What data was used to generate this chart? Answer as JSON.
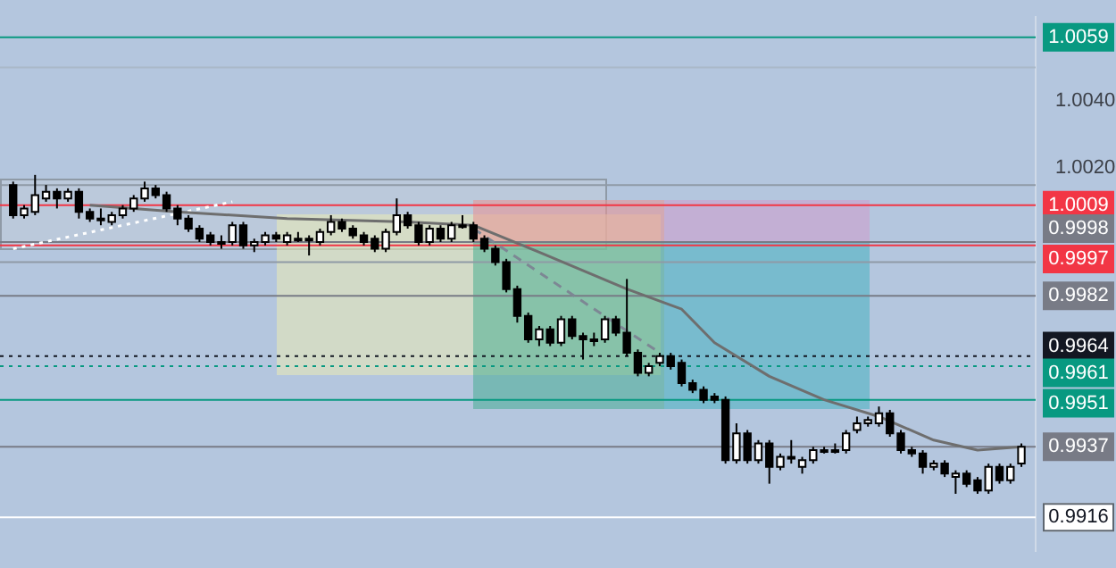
{
  "chart_data": {
    "type": "candlestick",
    "categories": [
      null,
      null,
      null,
      null,
      null,
      null,
      null,
      null,
      null,
      null,
      null,
      null,
      null,
      null,
      null,
      null,
      null,
      null,
      null,
      null,
      null,
      null,
      null,
      null,
      null,
      null,
      null,
      null,
      null,
      null,
      null,
      null,
      null,
      null,
      null,
      null,
      null,
      null,
      null,
      null,
      null,
      null,
      null,
      null,
      null,
      null,
      null,
      null,
      null,
      null,
      null,
      null,
      null,
      null,
      null,
      null,
      null,
      null,
      null,
      null,
      null,
      null,
      null,
      null,
      null,
      null,
      null,
      null,
      null,
      null,
      null,
      null,
      null,
      null,
      null,
      null,
      null,
      null,
      null,
      null,
      null,
      null,
      null,
      null,
      null,
      null,
      null,
      null,
      null,
      null,
      null,
      null,
      null
    ],
    "ohlc": [
      [
        1.0015,
        1.0016,
        1.0005,
        1.0006
      ],
      [
        1.0006,
        1.0009,
        1.0005,
        1.0008
      ],
      [
        1.0007,
        1.0018,
        1.0006,
        1.0012
      ],
      [
        1.0011,
        1.0015,
        1.001,
        1.0013
      ],
      [
        1.0013,
        1.0014,
        1.0008,
        1.0011
      ],
      [
        1.0011,
        1.0014,
        1.001,
        1.0013
      ],
      [
        1.0013,
        1.0014,
        1.0005,
        1.0007
      ],
      [
        1.0007,
        1.0008,
        1.0004,
        1.0005
      ],
      [
        1.0005,
        1.0008,
        1.0003,
        1.0005
      ],
      [
        1.0004,
        1.0007,
        1.0003,
        1.0006
      ],
      [
        1.0006,
        1.0009,
        1.0005,
        1.0008
      ],
      [
        1.0008,
        1.0012,
        1.0007,
        1.0011
      ],
      [
        1.0011,
        1.0016,
        1.001,
        1.0014
      ],
      [
        1.0014,
        1.0015,
        1.0011,
        1.0012
      ],
      [
        1.0012,
        1.0013,
        1.0007,
        1.0008
      ],
      [
        1.0008,
        1.0009,
        1.0003,
        1.0005
      ],
      [
        1.0005,
        1.0006,
        1.0001,
        1.0002
      ],
      [
        1.0002,
        1.0003,
        0.9998,
        0.9999
      ],
      [
        1.0,
        1.0001,
        0.9997,
        0.9998
      ],
      [
        0.9998,
        1.0,
        0.9996,
        0.9998
      ],
      [
        0.9998,
        1.0004,
        0.9997,
        1.0003
      ],
      [
        1.0003,
        1.0004,
        0.9996,
        0.9997
      ],
      [
        0.9997,
        0.9999,
        0.9995,
        0.9998
      ],
      [
        0.9998,
        1.0001,
        0.9997,
        1.0
      ],
      [
        1.0,
        1.0001,
        0.9998,
        0.9999
      ],
      [
        0.9998,
        1.0001,
        0.9997,
        1.0
      ],
      [
        0.9999,
        1.0001,
        0.9998,
        0.9999
      ],
      [
        0.9999,
        1.0,
        0.9994,
        0.9999
      ],
      [
        0.9998,
        1.0002,
        0.9997,
        1.0001
      ],
      [
        1.0001,
        1.0006,
        1.0,
        1.0004
      ],
      [
        1.0004,
        1.0005,
        1.0001,
        1.0002
      ],
      [
        1.0002,
        1.0003,
        0.9999,
        1.0
      ],
      [
        1.0,
        1.0001,
        0.9997,
        0.9998
      ],
      [
        0.9999,
        1.0,
        0.9995,
        0.9996
      ],
      [
        0.9996,
        1.0002,
        0.9995,
        1.0001
      ],
      [
        1.0001,
        1.0011,
        1.0,
        1.0006
      ],
      [
        1.0006,
        1.0007,
        1.0002,
        1.0003
      ],
      [
        1.0003,
        1.0004,
        0.9997,
        0.9998
      ],
      [
        0.9998,
        1.0003,
        0.9997,
        1.0002
      ],
      [
        1.0002,
        1.0003,
        0.9998,
        0.9999
      ],
      [
        0.9999,
        1.0004,
        0.9998,
        1.0003
      ],
      [
        1.0003,
        1.0006,
        1.0002,
        1.0003
      ],
      [
        1.0003,
        1.0004,
        0.9998,
        0.9999
      ],
      [
        0.9999,
        1.0,
        0.9995,
        0.9996
      ],
      [
        0.9996,
        0.9997,
        0.9991,
        0.9992
      ],
      [
        0.9992,
        0.9993,
        0.9983,
        0.9984
      ],
      [
        0.9984,
        0.9985,
        0.9974,
        0.9976
      ],
      [
        0.9976,
        0.9977,
        0.9968,
        0.9969
      ],
      [
        0.9969,
        0.9973,
        0.9967,
        0.9972
      ],
      [
        0.9972,
        0.9973,
        0.9967,
        0.9968
      ],
      [
        0.9968,
        0.9976,
        0.9967,
        0.9975
      ],
      [
        0.9975,
        0.9976,
        0.9969,
        0.997
      ],
      [
        0.997,
        0.9971,
        0.9963,
        0.9969
      ],
      [
        0.9969,
        0.9971,
        0.9967,
        0.9969
      ],
      [
        0.9969,
        0.9976,
        0.9968,
        0.9975
      ],
      [
        0.9975,
        0.9976,
        0.997,
        0.9971
      ],
      [
        0.9971,
        0.9987,
        0.9964,
        0.9965
      ],
      [
        0.9965,
        0.9966,
        0.9958,
        0.9959
      ],
      [
        0.9959,
        0.9962,
        0.9958,
        0.9961
      ],
      [
        0.9962,
        0.9965,
        0.9961,
        0.9964
      ],
      [
        0.9964,
        0.9965,
        0.996,
        0.9961
      ],
      [
        0.9962,
        0.9963,
        0.9955,
        0.9956
      ],
      [
        0.9956,
        0.9957,
        0.9953,
        0.9954
      ],
      [
        0.9954,
        0.9955,
        0.995,
        0.9951
      ],
      [
        0.9952,
        0.9953,
        0.995,
        0.9951
      ],
      [
        0.9951,
        0.9952,
        0.9932,
        0.9933
      ],
      [
        0.9933,
        0.9944,
        0.9932,
        0.9941
      ],
      [
        0.9941,
        0.9942,
        0.9932,
        0.9933
      ],
      [
        0.9933,
        0.9939,
        0.9932,
        0.9938
      ],
      [
        0.9938,
        0.9939,
        0.9926,
        0.9931
      ],
      [
        0.9931,
        0.9935,
        0.993,
        0.9934
      ],
      [
        0.9934,
        0.9939,
        0.9932,
        0.9934
      ],
      [
        0.9931,
        0.9934,
        0.9929,
        0.9933
      ],
      [
        0.9933,
        0.9937,
        0.9932,
        0.9936
      ],
      [
        0.9936,
        0.9937,
        0.9935,
        0.9936
      ],
      [
        0.9936,
        0.9938,
        0.9935,
        0.9936
      ],
      [
        0.9936,
        0.9942,
        0.9935,
        0.9941
      ],
      [
        0.9942,
        0.9946,
        0.9941,
        0.9944
      ],
      [
        0.9944,
        0.9946,
        0.9943,
        0.9945
      ],
      [
        0.9944,
        0.9949,
        0.9943,
        0.9947
      ],
      [
        0.9947,
        0.9948,
        0.994,
        0.9941
      ],
      [
        0.9941,
        0.9942,
        0.9935,
        0.9936
      ],
      [
        0.9936,
        0.9937,
        0.9934,
        0.9935
      ],
      [
        0.9935,
        0.9936,
        0.9929,
        0.9931
      ],
      [
        0.9931,
        0.9933,
        0.993,
        0.9932
      ],
      [
        0.9932,
        0.9933,
        0.9928,
        0.9929
      ],
      [
        0.9928,
        0.993,
        0.9923,
        0.9929
      ],
      [
        0.9929,
        0.993,
        0.9925,
        0.9926
      ],
      [
        0.9927,
        0.9928,
        0.9923,
        0.9924
      ],
      [
        0.9924,
        0.9932,
        0.9923,
        0.9931
      ],
      [
        0.9931,
        0.9932,
        0.9926,
        0.9927
      ],
      [
        0.9927,
        0.9932,
        0.9926,
        0.9931
      ],
      [
        0.9932,
        0.9938,
        0.9931,
        0.9937
      ]
    ],
    "series": [
      {
        "type": "line",
        "color": "#6e6e6e",
        "values": [
          null,
          null,
          null,
          null,
          null,
          null,
          null,
          1.0009,
          null,
          null,
          null,
          null,
          null,
          null,
          null,
          1.0007,
          null,
          null,
          null,
          null,
          null,
          null,
          null,
          null,
          null,
          1.0005,
          null,
          null,
          null,
          null,
          null,
          null,
          null,
          null,
          null,
          null,
          1.0004,
          null,
          null,
          null,
          null,
          null,
          1.0003,
          null,
          null,
          null,
          null,
          null,
          0.9995,
          null,
          null,
          null,
          null,
          null,
          null,
          null,
          0.9984,
          null,
          null,
          null,
          null,
          0.9978,
          null,
          null,
          0.9968,
          null,
          null,
          null,
          null,
          0.9958,
          null,
          null,
          null,
          null,
          0.9951,
          null,
          null,
          null,
          null,
          0.9946,
          null,
          null,
          null,
          null,
          0.9939,
          null,
          null,
          null,
          0.9936,
          null,
          null,
          null,
          0.9937
        ]
      },
      {
        "type": "line",
        "color": "#ffffff",
        "line_style": "dotted",
        "values": [
          0.9996,
          null,
          null,
          null,
          null,
          null,
          null,
          null,
          null,
          null,
          null,
          null,
          null,
          null,
          null,
          null,
          null,
          null,
          null,
          null,
          1.001,
          null,
          null,
          null,
          null,
          null,
          null,
          null,
          null,
          null,
          null,
          null,
          null,
          null,
          null,
          null,
          null,
          null,
          null,
          null,
          null,
          null,
          null,
          null,
          null,
          null,
          null,
          null,
          null,
          null,
          null,
          null,
          null,
          null,
          null,
          null,
          null,
          null,
          null,
          null,
          null,
          null,
          null,
          null,
          null,
          null,
          null,
          null,
          null,
          null,
          null,
          null,
          null,
          null,
          null,
          null,
          null,
          null,
          null,
          null,
          null,
          null,
          null,
          null,
          null,
          null,
          null,
          null,
          null,
          null,
          null,
          null,
          null
        ]
      },
      {
        "type": "line",
        "color": "#7d8794",
        "line_style": "dashed",
        "values": [
          null,
          null,
          null,
          null,
          null,
          null,
          null,
          null,
          null,
          null,
          null,
          null,
          null,
          null,
          null,
          null,
          null,
          null,
          null,
          null,
          null,
          null,
          null,
          null,
          null,
          null,
          null,
          null,
          null,
          null,
          null,
          null,
          null,
          null,
          null,
          null,
          null,
          null,
          null,
          null,
          null,
          null,
          1.0002,
          null,
          null,
          null,
          null,
          null,
          null,
          null,
          null,
          null,
          null,
          null,
          null,
          null,
          null,
          null,
          null,
          0.9965,
          null,
          null,
          null,
          null,
          null,
          null,
          null,
          null,
          null,
          null,
          null,
          null,
          null,
          null,
          null,
          null,
          null,
          null,
          null,
          null,
          null,
          null,
          null,
          null,
          null,
          null,
          null,
          null,
          null,
          null,
          null,
          null,
          null
        ]
      }
    ],
    "ylim": [
      0.9906,
      1.0065
    ],
    "yticks": [
      {
        "value": 1.004,
        "label": "1.0040"
      },
      {
        "value": 1.002,
        "label": "1.0020"
      }
    ],
    "ref_lines": [
      {
        "axis": "y",
        "value": 1.0059,
        "label": "1.0059",
        "color": "#089981"
      },
      {
        "axis": "y",
        "value": 1.005,
        "color": "#aab8c8"
      },
      {
        "axis": "y",
        "value": 1.0015,
        "color": "#8f9aa6"
      },
      {
        "axis": "y",
        "value": 1.0009,
        "label": "1.0009",
        "color": "#f23645"
      },
      {
        "axis": "y",
        "value": 0.9998,
        "label": "0.9998",
        "color": "#787b86"
      },
      {
        "axis": "y",
        "value": 0.9997,
        "label": "0.9997",
        "color": "#f23645"
      },
      {
        "axis": "y",
        "value": 0.9992,
        "color": "#8f9aa6"
      },
      {
        "axis": "y",
        "value": 0.9982,
        "label": "0.9982",
        "color": "#787b86"
      },
      {
        "axis": "y",
        "value": 0.9964,
        "label": "0.9964",
        "color": "#131722",
        "line_style": "dotted"
      },
      {
        "axis": "y",
        "value": 0.9961,
        "label": "0.9961",
        "color": "#089981",
        "line_style": "dotted"
      },
      {
        "axis": "y",
        "value": 0.9951,
        "label": "0.9951",
        "color": "#089981"
      },
      {
        "axis": "y",
        "value": 0.9937,
        "label": "0.9937",
        "color": "#787b86"
      },
      {
        "axis": "y",
        "value": 0.9916,
        "label": "0.9916",
        "color": "#ffffff"
      }
    ],
    "grid": false,
    "legend": false
  }
}
